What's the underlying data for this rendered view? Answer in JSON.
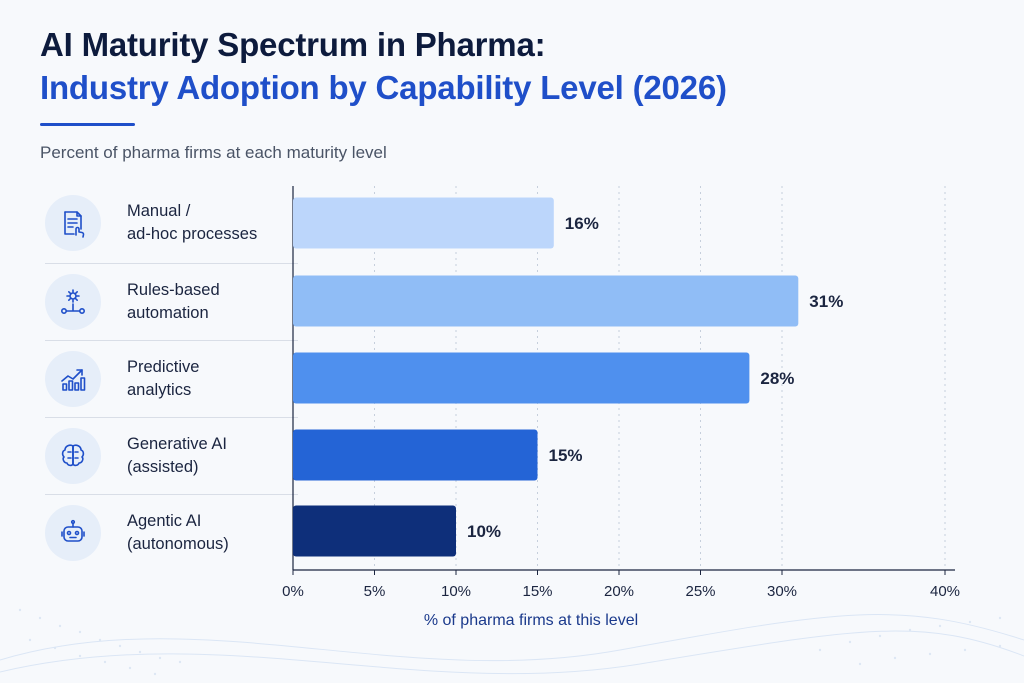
{
  "title_line1": "AI Maturity Spectrum in Pharma:",
  "title_line2": "Industry Adoption by Capability Level (2026)",
  "subtitle": "Percent of pharma firms at each maturity level",
  "colors": {
    "title_dark": "#0d1b3d",
    "accent": "#1f4fc9",
    "bars": [
      "#bcd6fb",
      "#90bdf6",
      "#4f90ee",
      "#2464d6",
      "#0e2f7a"
    ]
  },
  "rows": [
    {
      "label": "Manual /\nad-hoc processes",
      "icon": "document-hand-icon"
    },
    {
      "label": "Rules-based\nautomation",
      "icon": "gear-flow-icon"
    },
    {
      "label": "Predictive\nanalytics",
      "icon": "trend-chart-icon"
    },
    {
      "label": "Generative AI\n(assisted)",
      "icon": "brain-circuit-icon"
    },
    {
      "label": "Agentic AI\n(autonomous)",
      "icon": "robot-icon"
    }
  ],
  "chart_data": {
    "type": "bar",
    "orientation": "horizontal",
    "categories": [
      "Manual / ad-hoc processes",
      "Rules-based automation",
      "Predictive analytics",
      "Generative AI (assisted)",
      "Agentic AI (autonomous)"
    ],
    "values": [
      16,
      31,
      28,
      15,
      10
    ],
    "value_labels": [
      "16%",
      "31%",
      "28%",
      "15%",
      "10%"
    ],
    "xlabel": "% of pharma firms at this level",
    "xlim": [
      0,
      40
    ],
    "xticks": [
      "0%",
      "5%",
      "10%",
      "15%",
      "20%",
      "25%",
      "30%",
      "40%"
    ],
    "xtick_values": [
      0,
      5,
      10,
      15,
      20,
      25,
      30,
      40
    ],
    "grid": "vertical dotted"
  }
}
